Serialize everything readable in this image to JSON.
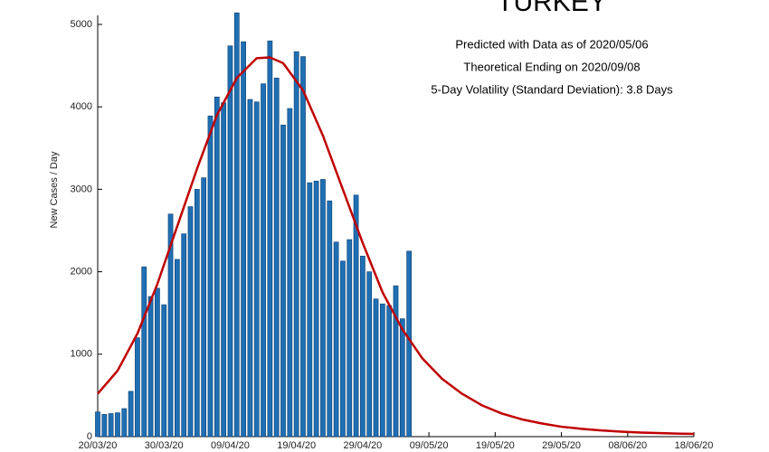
{
  "chart_data": {
    "type": "bar",
    "title": "TURKEY",
    "annotations": [
      "Predicted with Data as of 2020/05/06",
      "Theoretical Ending on 2020/09/08",
      "5-Day Volatility (Standard Deviation): 3.8 Days"
    ],
    "y_label": "New Cases / Day",
    "xlim": [
      "20/03/20",
      "18/06/20"
    ],
    "xticks": [
      "20/03/20",
      "30/03/20",
      "09/04/20",
      "19/04/20",
      "29/04/20",
      "09/05/20",
      "19/05/20",
      "29/05/20",
      "08/06/20",
      "18/06/20"
    ],
    "ylim": [
      0,
      5000
    ],
    "yticks": [
      0,
      1000,
      2000,
      3000,
      4000,
      5000
    ],
    "series": [
      {
        "type": "bar",
        "color": "#1f6fb4",
        "x": [
          "20/03/20",
          "21/03/20",
          "22/03/20",
          "23/03/20",
          "24/03/20",
          "25/03/20",
          "26/03/20",
          "27/03/20",
          "28/03/20",
          "29/03/20",
          "30/03/20",
          "31/03/20",
          "01/04/20",
          "02/04/20",
          "03/04/20",
          "04/04/20",
          "05/04/20",
          "06/04/20",
          "07/04/20",
          "08/04/20",
          "09/04/20",
          "10/04/20",
          "11/04/20",
          "12/04/20",
          "13/04/20",
          "14/04/20",
          "15/04/20",
          "16/04/20",
          "17/04/20",
          "18/04/20",
          "19/04/20",
          "20/04/20",
          "21/04/20",
          "22/04/20",
          "23/04/20",
          "24/04/20",
          "25/04/20",
          "26/04/20",
          "27/04/20",
          "28/04/20",
          "29/04/20",
          "30/04/20",
          "01/05/20",
          "02/05/20",
          "03/05/20",
          "04/05/20",
          "05/05/20",
          "06/05/20"
        ],
        "values": [
          300,
          270,
          280,
          290,
          340,
          550,
          1200,
          2060,
          1700,
          1800,
          1600,
          2700,
          2150,
          2460,
          2790,
          3000,
          3140,
          3890,
          4120,
          4050,
          4740,
          5140,
          4790,
          4090,
          4060,
          4280,
          4800,
          4350,
          3780,
          3980,
          4670,
          4610,
          3080,
          3100,
          3120,
          2860,
          2360,
          2130,
          2390,
          2930,
          2190,
          2000,
          1670,
          1610,
          1590,
          1830,
          1430,
          2250
        ]
      },
      {
        "type": "line",
        "color": "#c00000",
        "x": [
          "20/03/20",
          "23/03/20",
          "26/03/20",
          "29/03/20",
          "01/04/20",
          "04/04/20",
          "07/04/20",
          "10/04/20",
          "13/04/20",
          "15/04/20",
          "17/04/20",
          "20/04/20",
          "23/04/20",
          "26/04/20",
          "29/04/20",
          "02/05/20",
          "05/05/20",
          "08/05/20",
          "11/05/20",
          "14/05/20",
          "17/05/20",
          "20/05/20",
          "23/05/20",
          "26/05/20",
          "29/05/20",
          "01/06/20",
          "04/06/20",
          "07/06/20",
          "10/06/20",
          "13/06/20",
          "16/06/20",
          "18/06/20"
        ],
        "values": [
          520,
          800,
          1250,
          1850,
          2550,
          3250,
          3900,
          4350,
          4590,
          4600,
          4530,
          4200,
          3650,
          3000,
          2350,
          1750,
          1300,
          950,
          700,
          520,
          380,
          280,
          210,
          160,
          120,
          95,
          75,
          60,
          50,
          42,
          36,
          33
        ]
      }
    ]
  }
}
